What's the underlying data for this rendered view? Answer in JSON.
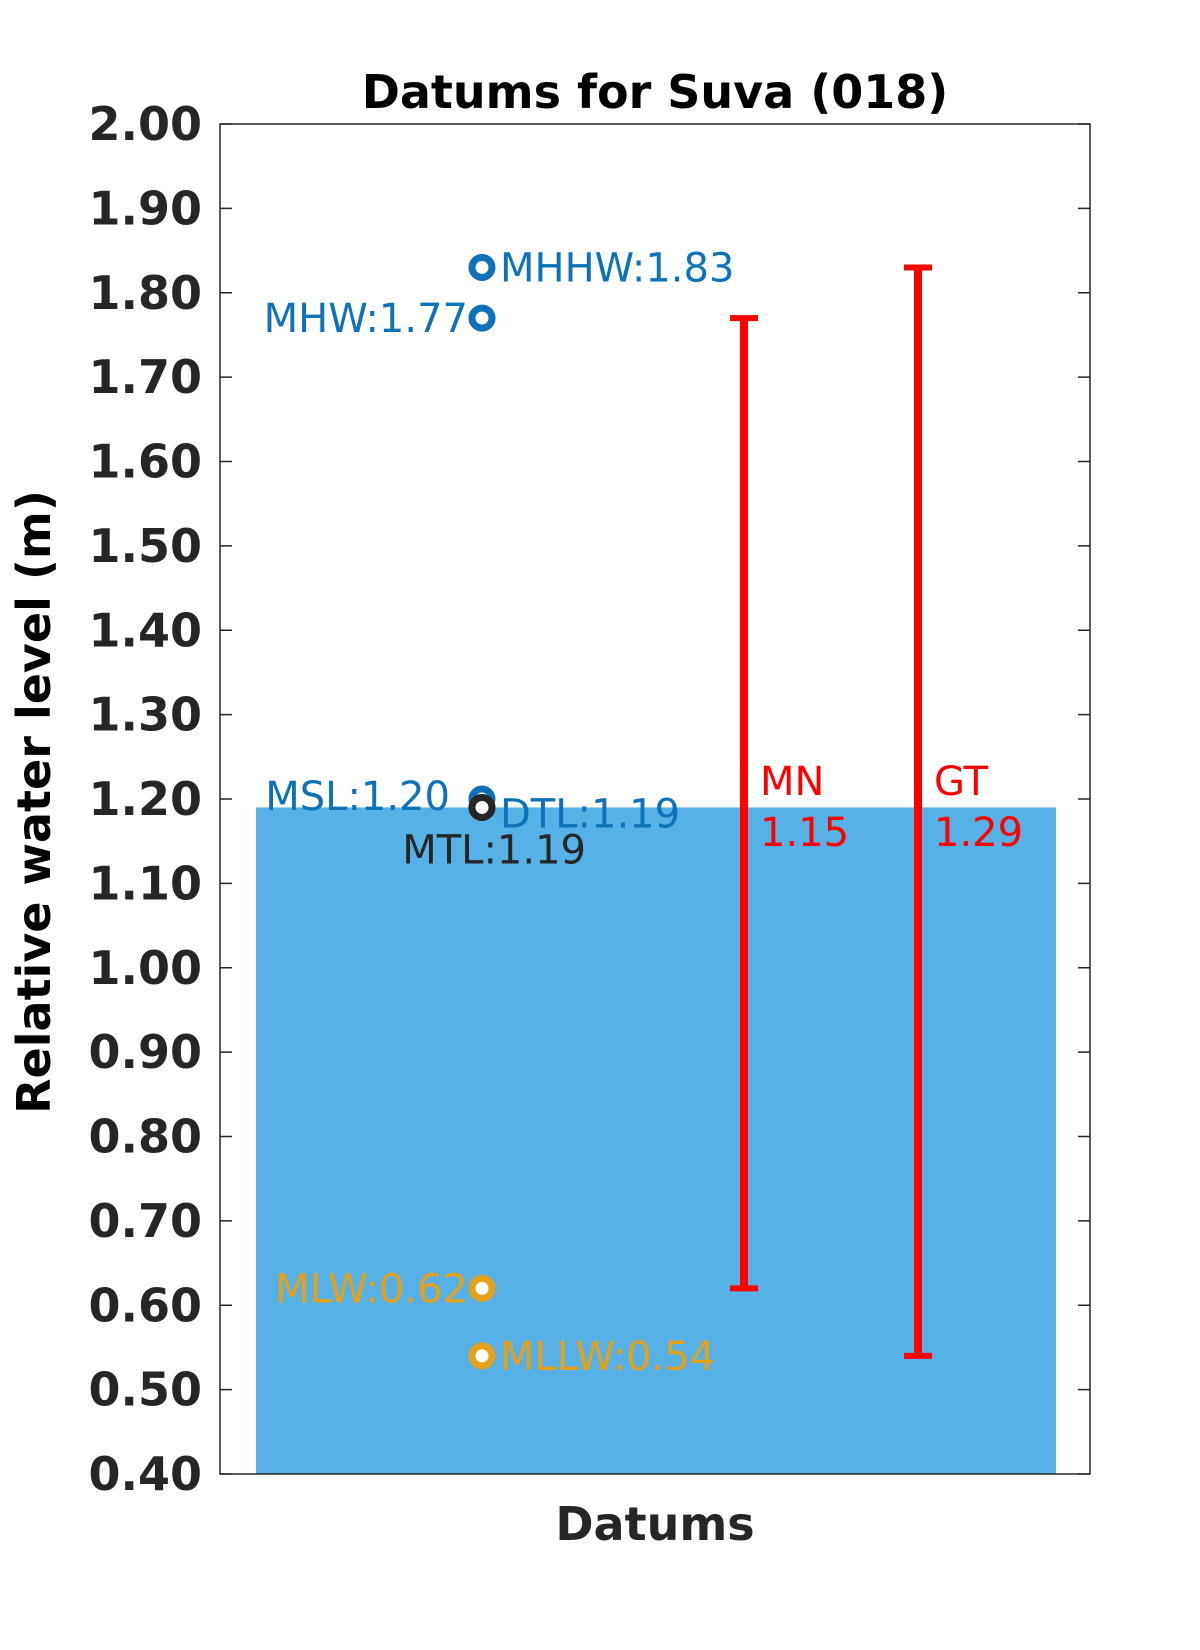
{
  "chart_data": {
    "type": "bar",
    "title": "Datums for Suva (018)",
    "xlabel": "Datums",
    "ylabel": "Relative water level (m)",
    "ylim": [
      0.4,
      2.0
    ],
    "yticks": [
      "0.40",
      "0.50",
      "0.60",
      "0.70",
      "0.80",
      "0.90",
      "1.00",
      "1.10",
      "1.20",
      "1.30",
      "1.40",
      "1.50",
      "1.60",
      "1.70",
      "1.80",
      "1.90",
      "2.00"
    ],
    "grid": false,
    "bar": {
      "value": 1.19,
      "color": "#56b2e6"
    },
    "points": [
      {
        "name": "MHHW",
        "value": 1.83,
        "label": "MHHW:1.83",
        "color": "#0d72b8"
      },
      {
        "name": "MHW",
        "value": 1.77,
        "label": "MHW:1.77",
        "color": "#0d72b8"
      },
      {
        "name": "MSL",
        "value": 1.2,
        "label": "MSL:1.20",
        "color": "#0d72b8"
      },
      {
        "name": "DTL",
        "value": 1.19,
        "label": "DTL:1.19",
        "color": "#0d72b8"
      },
      {
        "name": "MTL",
        "value": 1.19,
        "label": "MTL:1.19",
        "color": "#262626"
      },
      {
        "name": "MLW",
        "value": 0.62,
        "label": "MLW:0.62",
        "color": "#e5a11a"
      },
      {
        "name": "MLLW",
        "value": 0.54,
        "label": "MLLW:0.54",
        "color": "#e5a11a"
      }
    ],
    "ranges": [
      {
        "name": "MN",
        "low": 0.62,
        "high": 1.77,
        "label_name": "MN",
        "label_value": "1.15",
        "color": "#ff0000"
      },
      {
        "name": "GT",
        "low": 0.54,
        "high": 1.83,
        "label_name": "GT",
        "label_value": "1.29",
        "color": "#ff0000"
      }
    ]
  }
}
